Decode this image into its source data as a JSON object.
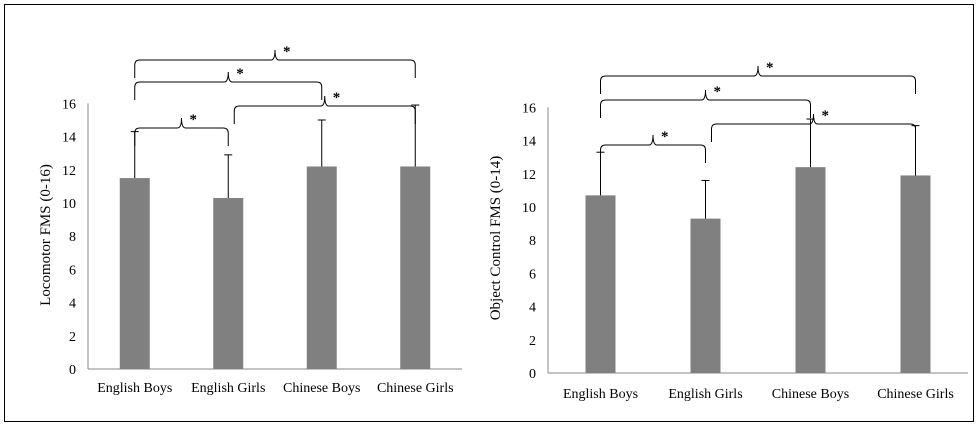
{
  "chart_data": [
    {
      "type": "bar",
      "categories": [
        "English Boys",
        "English Girls",
        "Chinese Boys",
        "Chinese Girls"
      ],
      "values": [
        11.5,
        10.3,
        12.2,
        12.2
      ],
      "error": [
        2.8,
        2.6,
        2.8,
        3.7
      ],
      "ylabel": "Locomotor FMS (0-16)",
      "xlabel": "",
      "title": "",
      "ylim": [
        0,
        16
      ],
      "yticks": [
        0,
        2,
        4,
        6,
        8,
        10,
        12,
        14,
        16
      ],
      "bar_color": "#808080",
      "grid": false,
      "significance": [
        {
          "from": 0,
          "to": 1,
          "label": "*"
        },
        {
          "from": 1,
          "to": 3,
          "label": "*"
        },
        {
          "from": 0,
          "to": 2,
          "label": "*"
        },
        {
          "from": 0,
          "to": 3,
          "label": "*"
        }
      ]
    },
    {
      "type": "bar",
      "categories": [
        "English Boys",
        "English Girls",
        "Chinese Boys",
        "Chinese Girls"
      ],
      "values": [
        10.7,
        9.3,
        12.4,
        11.9
      ],
      "error": [
        2.6,
        2.3,
        2.9,
        3.0
      ],
      "ylabel": "Object Control FMS (0-14)",
      "xlabel": "",
      "title": "",
      "ylim": [
        0,
        16
      ],
      "yticks": [
        0,
        2,
        4,
        6,
        8,
        10,
        12,
        14,
        16
      ],
      "bar_color": "#808080",
      "grid": false,
      "significance": [
        {
          "from": 0,
          "to": 1,
          "label": "*"
        },
        {
          "from": 1,
          "to": 3,
          "label": "*"
        },
        {
          "from": 0,
          "to": 2,
          "label": "*"
        },
        {
          "from": 0,
          "to": 3,
          "label": "*"
        }
      ]
    }
  ]
}
